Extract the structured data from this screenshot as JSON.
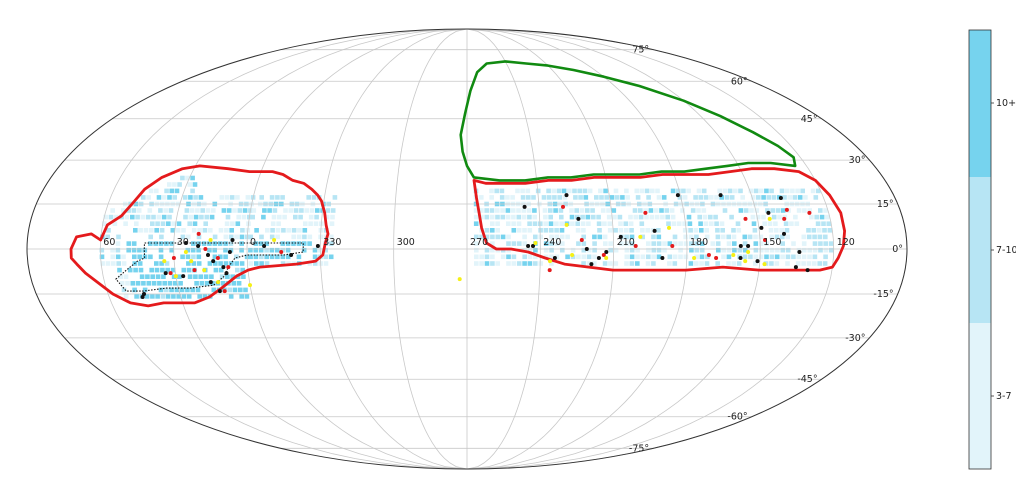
{
  "chart_data": {
    "type": "scatter",
    "projection": "mollweide",
    "grid": true,
    "title": "",
    "xlabel": "",
    "ylabel": "",
    "lon_ticks": [
      "60",
      "30",
      "0",
      "330",
      "300",
      "270",
      "240",
      "210",
      "180",
      "150",
      "120"
    ],
    "lat_ticks": [
      "75°",
      "60°",
      "45°",
      "30°",
      "15°",
      "0°",
      "-15°",
      "-30°",
      "-45°",
      "-60°",
      "-75°"
    ],
    "colorbar": {
      "position": "right",
      "tick_labels": [
        "10+",
        "7-10",
        "3-7"
      ],
      "colors": [
        "#76d3ee",
        "#b7e5f4",
        "#e2f4fa"
      ]
    },
    "colors": {
      "red_outline": "#e41a1c",
      "green_outline": "#118a11",
      "black_points": "#111111",
      "red_points": "#e41a1c",
      "yellow_points": "#f5f015"
    },
    "series": [
      {
        "color": "black",
        "points": [
          [
            25,
            2
          ],
          [
            20,
            1
          ],
          [
            16,
            -2
          ],
          [
            14,
            -4
          ],
          [
            10,
            -6
          ],
          [
            27,
            -9
          ],
          [
            34,
            -8
          ],
          [
            46,
            -16
          ],
          [
            45,
            -15
          ],
          [
            6,
            3
          ],
          [
            7,
            -1
          ],
          [
            16,
            -11
          ],
          [
            13,
            -14
          ],
          [
            9,
            -8
          ],
          [
            353,
            1
          ],
          [
            342,
            -2
          ],
          [
            331,
            1
          ],
          [
            246,
            14
          ],
          [
            245,
            1
          ],
          [
            243,
            1
          ],
          [
            234,
            -3
          ],
          [
            228,
            18
          ],
          [
            224,
            10
          ],
          [
            221,
            0
          ],
          [
            219,
            -5
          ],
          [
            216,
            -3
          ],
          [
            213,
            -1
          ],
          [
            207,
            4
          ],
          [
            193,
            6
          ],
          [
            190,
            -3
          ],
          [
            181,
            18
          ],
          [
            163,
            18
          ],
          [
            158,
            1
          ],
          [
            158,
            -3
          ],
          [
            155,
            1
          ],
          [
            151,
            -4
          ],
          [
            149,
            7
          ],
          [
            145,
            12
          ],
          [
            138,
            17
          ],
          [
            140,
            5
          ],
          [
            134,
            -1
          ],
          [
            135,
            -6
          ],
          [
            130,
            -7
          ]
        ]
      },
      {
        "color": "red",
        "points": [
          [
            20,
            5
          ],
          [
            17,
            0
          ],
          [
            12,
            -3
          ],
          [
            8,
            -6
          ],
          [
            11,
            -14
          ],
          [
            30,
            -3
          ],
          [
            32,
            -8
          ],
          [
            22,
            -7
          ],
          [
            346,
            -1
          ],
          [
            236,
            -7
          ],
          [
            230,
            14
          ],
          [
            223,
            3
          ],
          [
            214,
            -2
          ],
          [
            201,
            1
          ],
          [
            196,
            12
          ],
          [
            186,
            1
          ],
          [
            171,
            -2
          ],
          [
            168,
            -3
          ],
          [
            155,
            10
          ],
          [
            148,
            3
          ],
          [
            139,
            10
          ],
          [
            137,
            13
          ],
          [
            128,
            12
          ]
        ]
      },
      {
        "color": "yellow",
        "points": [
          [
            25,
            -1
          ],
          [
            23,
            -4
          ],
          [
            15,
            3
          ],
          [
            18,
            -7
          ],
          [
            30,
            -9
          ],
          [
            13,
            -11
          ],
          [
            34,
            -4
          ],
          [
            360,
            -12
          ],
          [
            349,
            3
          ],
          [
            273,
            -10
          ],
          [
            236,
            -4
          ],
          [
            227,
            -2
          ],
          [
            242,
            2
          ],
          [
            229,
            8
          ],
          [
            213,
            -3
          ],
          [
            199,
            4
          ],
          [
            187,
            7
          ],
          [
            177,
            -3
          ],
          [
            161,
            -2
          ],
          [
            155,
            -1
          ],
          [
            148,
            -5
          ],
          [
            145,
            10
          ],
          [
            156,
            -4
          ]
        ]
      }
    ]
  }
}
